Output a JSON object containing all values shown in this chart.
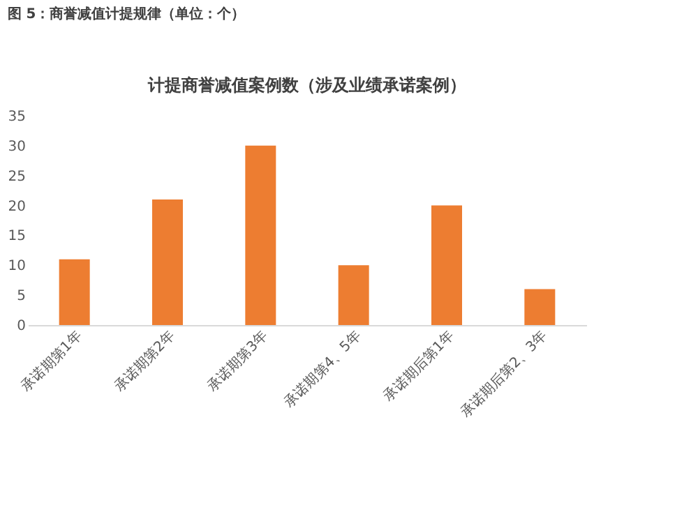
{
  "chart_data": {
    "type": "bar",
    "title": "图 5：商誉减值计提规律（单位：个）",
    "subtitle": "计提商誉减值案例数（涉及业绩承诺案例）",
    "categories": [
      "承诺期第1年",
      "承诺期第2年",
      "承诺期第3年",
      "承诺期第4、5年",
      "承诺期后第1年",
      "承诺期后第2、3年"
    ],
    "values": [
      11,
      21,
      30,
      10,
      20,
      6
    ],
    "color": "#ed7d31",
    "ylim": [
      0,
      35
    ],
    "yticks": [
      0,
      5,
      10,
      15,
      20,
      25,
      30,
      35
    ],
    "grid": false
  }
}
